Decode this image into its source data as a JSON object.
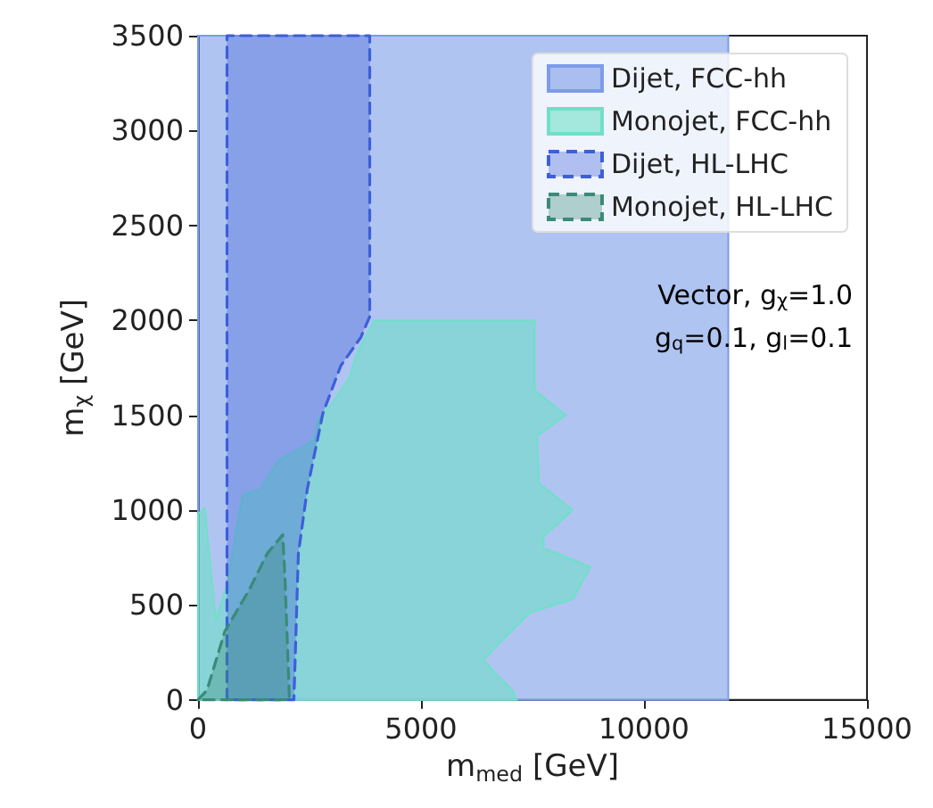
{
  "chart_data": {
    "type": "area",
    "xlabel": "m$_{med}$ [GeV]",
    "ylabel": "m$_{χ}$ [GeV]",
    "xlim": [
      0,
      15000
    ],
    "ylim": [
      0,
      3500
    ],
    "xticks": [
      0,
      5000,
      10000,
      15000
    ],
    "yticks": [
      0,
      500,
      1000,
      1500,
      2000,
      2500,
      3000,
      3500
    ],
    "grid": false,
    "legend": "top right",
    "annotations": [
      "Vector, g$_{χ}$=1.0",
      "g$_{q}$=0.1, g$_{l}$=0.1"
    ],
    "series": [
      {
        "name": "Dijet, FCC-hh",
        "color": "#7b9ce8",
        "line_style": "solid",
        "x": [
          0,
          11890,
          11890,
          0
        ],
        "values": [
          0,
          0,
          3500,
          3500
        ]
      },
      {
        "name": "Monojet, FCC-hh",
        "color": "#6fe0c8",
        "line_style": "solid",
        "x": [
          0,
          0,
          150,
          400,
          650,
          1000,
          1400,
          1800,
          2600,
          2700,
          3000,
          3400,
          3550,
          3950,
          7550,
          7550,
          7550,
          8250,
          7600,
          7650,
          8400,
          7750,
          7750,
          8800,
          8400,
          7450,
          6850,
          6400,
          6750,
          7050,
          7150
        ],
        "values": [
          0,
          980,
          1010,
          420,
          610,
          1080,
          1110,
          1260,
          1370,
          1480,
          1560,
          1700,
          1820,
          2000,
          2000,
          1960,
          1630,
          1500,
          1390,
          1140,
          1000,
          860,
          800,
          700,
          530,
          460,
          320,
          210,
          120,
          50,
          0
        ]
      },
      {
        "name": "Dijet, HL-LHC",
        "color": "#3d5fd8",
        "line_style": "dashed",
        "x": [
          650,
          650,
          3850,
          3850,
          3650,
          3200,
          2800,
          2450,
          2250,
          2150
        ],
        "values": [
          0,
          3500,
          3500,
          2020,
          1910,
          1760,
          1510,
          1110,
          770,
          0
        ]
      },
      {
        "name": "Monojet, HL-LHC",
        "color": "#3a8a78",
        "line_style": "dashed",
        "x": [
          0,
          200,
          600,
          1150,
          1550,
          1900,
          1950,
          2050
        ],
        "values": [
          0,
          50,
          360,
          580,
          770,
          870,
          640,
          0
        ]
      }
    ]
  }
}
